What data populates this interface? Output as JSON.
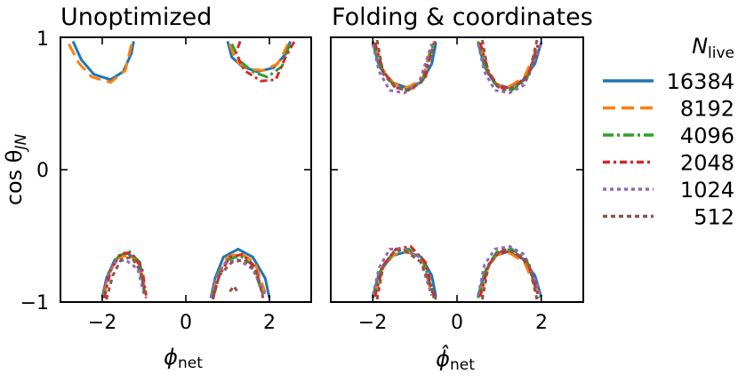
{
  "colors": {
    "16384": "#1f77b4",
    "8192": "#ff7f0e",
    "4096": "#2ca02c",
    "2048": "#d62728",
    "1024": "#9467bd",
    "512": "#8c564b"
  },
  "legend": {
    "title_main": "N",
    "title_sub": "live",
    "entries": [
      "16384",
      "8192",
      "4096",
      "2048",
      "1024",
      "512"
    ]
  },
  "chart_data": [
    {
      "type": "line",
      "title": "Unoptimized",
      "xlabel_main": "ϕ",
      "xlabel_sub": "net",
      "ylabel": "cos θ",
      "ylabel_sub": "JN",
      "xlim": [
        -3,
        3
      ],
      "ylim": [
        -1,
        1
      ],
      "xticks": [
        "−2",
        "0",
        "2"
      ],
      "yticks": [
        "1",
        "0",
        "−1"
      ],
      "series": [
        {
          "name": "16384",
          "curves": [
            {
              "x": [
                -2.7,
                -2.5,
                -2.2,
                -1.8,
                -1.5,
                -1.3,
                -1.25
              ],
              "y": [
                0.97,
                0.83,
                0.72,
                0.68,
                0.74,
                0.88,
                0.97
              ]
            },
            {
              "x": [
                1.0,
                1.1,
                1.35,
                1.7,
                2.1,
                2.4,
                2.5
              ],
              "y": [
                0.97,
                0.85,
                0.78,
                0.74,
                0.77,
                0.88,
                0.97
              ]
            },
            {
              "x": [
                -2.0,
                -1.9,
                -1.7,
                -1.4,
                -1.1,
                -1.0
              ],
              "y": [
                -0.97,
                -0.82,
                -0.68,
                -0.63,
                -0.7,
                -0.9
              ]
            },
            {
              "x": [
                0.6,
                0.7,
                0.9,
                1.25,
                1.6,
                1.9,
                2.0
              ],
              "y": [
                -0.97,
                -0.82,
                -0.66,
                -0.6,
                -0.66,
                -0.82,
                -0.97
              ]
            }
          ]
        },
        {
          "name": "8192",
          "curves": [
            {
              "x": [
                -2.8,
                -2.55,
                -2.25,
                -1.8,
                -1.45,
                -1.3
              ],
              "y": [
                0.95,
                0.8,
                0.7,
                0.66,
                0.75,
                0.95
              ]
            },
            {
              "x": [
                1.05,
                1.2,
                1.5,
                1.85,
                2.2,
                2.45
              ],
              "y": [
                0.95,
                0.82,
                0.76,
                0.75,
                0.8,
                0.95
              ]
            },
            {
              "x": [
                -1.95,
                -1.85,
                -1.65,
                -1.35,
                -1.1,
                -0.95
              ],
              "y": [
                -0.95,
                -0.8,
                -0.67,
                -0.64,
                -0.72,
                -0.93
              ]
            },
            {
              "x": [
                0.65,
                0.75,
                1.0,
                1.3,
                1.65,
                1.9
              ],
              "y": [
                -0.95,
                -0.8,
                -0.66,
                -0.63,
                -0.7,
                -0.93
              ]
            }
          ]
        },
        {
          "name": "4096",
          "curves": [
            {
              "x": [
                1.1,
                1.3,
                1.6,
                1.95,
                2.3,
                2.5
              ],
              "y": [
                0.95,
                0.82,
                0.74,
                0.7,
                0.78,
                0.96
              ]
            },
            {
              "x": [
                -2.0,
                -1.85,
                -1.6,
                -1.35,
                -1.1,
                -1.0
              ],
              "y": [
                -0.96,
                -0.78,
                -0.65,
                -0.62,
                -0.7,
                -0.92
              ]
            },
            {
              "x": [
                0.6,
                0.75,
                1.0,
                1.3,
                1.6,
                1.85
              ],
              "y": [
                -0.96,
                -0.8,
                -0.68,
                -0.65,
                -0.72,
                -0.95
              ]
            }
          ]
        },
        {
          "name": "2048",
          "curves": [
            {
              "x": [
                1.3,
                1.2,
                1.4,
                1.8,
                2.15,
                2.4,
                2.6
              ],
              "y": [
                0.97,
                0.88,
                0.75,
                0.67,
                0.68,
                0.86,
                0.97
              ]
            },
            {
              "x": [
                -1.95,
                -1.8,
                -1.55,
                -1.3,
                -1.05,
                -0.95
              ],
              "y": [
                -0.97,
                -0.76,
                -0.63,
                -0.63,
                -0.74,
                -0.95
              ]
            },
            {
              "x": [
                0.65,
                0.8,
                1.05,
                1.35,
                1.65,
                1.85
              ],
              "y": [
                -0.97,
                -0.8,
                -0.66,
                -0.64,
                -0.73,
                -0.94
              ]
            }
          ]
        },
        {
          "name": "1024",
          "curves": [
            {
              "x": [
                -2.0,
                -1.9,
                -1.7,
                -1.45,
                -1.15,
                -1.0
              ],
              "y": [
                -0.96,
                -0.82,
                -0.7,
                -0.68,
                -0.75,
                -0.94
              ]
            },
            {
              "x": [
                0.6,
                0.7,
                0.95,
                1.25,
                1.6,
                1.9
              ],
              "y": [
                -0.96,
                -0.82,
                -0.7,
                -0.68,
                -0.75,
                -0.95
              ]
            }
          ]
        },
        {
          "name": "512",
          "curves": [
            {
              "x": [
                -1.9,
                -1.75,
                -1.55,
                -1.3,
                -1.1,
                -0.95
              ],
              "y": [
                -0.98,
                -0.8,
                -0.68,
                -0.66,
                -0.76,
                -0.97
              ]
            },
            {
              "x": [
                0.65,
                0.8,
                1.1,
                1.4,
                1.7,
                1.85
              ],
              "y": [
                -0.98,
                -0.8,
                -0.7,
                -0.68,
                -0.78,
                -0.97
              ]
            },
            {
              "x": [
                1.05,
                1.15,
                1.25
              ],
              "y": [
                -0.92,
                -0.88,
                -0.93
              ]
            }
          ]
        }
      ]
    },
    {
      "type": "line",
      "title": "Folding & coordinates",
      "xlabel_main": "ϕ̂",
      "xlabel_sub": "net",
      "xlim": [
        -3,
        3
      ],
      "ylim": [
        -1,
        1
      ],
      "xticks": [
        "−2",
        "0",
        "2"
      ],
      "series": [
        {
          "name": "16384",
          "curves": [
            {
              "x": [
                -2.0,
                -1.85,
                -1.55,
                -1.2,
                -0.85,
                -0.6,
                -0.5
              ],
              "y": [
                0.96,
                0.78,
                0.66,
                0.62,
                0.66,
                0.8,
                0.96
              ]
            },
            {
              "x": [
                0.5,
                0.65,
                0.9,
                1.2,
                1.55,
                1.85,
                2.0
              ],
              "y": [
                0.96,
                0.78,
                0.65,
                0.62,
                0.67,
                0.8,
                0.96
              ]
            },
            {
              "x": [
                -2.0,
                -1.85,
                -1.55,
                -1.2,
                -0.85,
                -0.6,
                -0.5
              ],
              "y": [
                -0.96,
                -0.78,
                -0.65,
                -0.62,
                -0.66,
                -0.8,
                -0.96
              ]
            },
            {
              "x": [
                0.5,
                0.65,
                0.9,
                1.2,
                1.55,
                1.85,
                2.0
              ],
              "y": [
                -0.96,
                -0.78,
                -0.65,
                -0.62,
                -0.67,
                -0.8,
                -0.96
              ]
            }
          ]
        },
        {
          "name": "8192",
          "curves": [
            {
              "x": [
                -1.95,
                -1.8,
                -1.5,
                -1.15,
                -0.8,
                -0.6
              ],
              "y": [
                0.95,
                0.77,
                0.65,
                0.62,
                0.7,
                0.95
              ]
            },
            {
              "x": [
                0.55,
                0.7,
                0.95,
                1.25,
                1.6,
                1.95
              ],
              "y": [
                0.95,
                0.76,
                0.64,
                0.63,
                0.7,
                0.95
              ]
            },
            {
              "x": [
                -1.95,
                -1.8,
                -1.5,
                -1.15,
                -0.8,
                -0.6
              ],
              "y": [
                -0.95,
                -0.76,
                -0.64,
                -0.62,
                -0.7,
                -0.95
              ]
            },
            {
              "x": [
                0.55,
                0.7,
                0.95,
                1.25,
                1.6,
                1.95
              ],
              "y": [
                -0.95,
                -0.76,
                -0.64,
                -0.63,
                -0.7,
                -0.95
              ]
            }
          ]
        },
        {
          "name": "4096",
          "curves": [
            {
              "x": [
                -2.0,
                -1.8,
                -1.5,
                -1.15,
                -0.8,
                -0.55
              ],
              "y": [
                0.97,
                0.77,
                0.63,
                0.6,
                0.68,
                0.97
              ]
            },
            {
              "x": [
                0.5,
                0.7,
                0.95,
                1.3,
                1.65,
                1.95
              ],
              "y": [
                0.97,
                0.76,
                0.63,
                0.6,
                0.68,
                0.97
              ]
            },
            {
              "x": [
                -2.0,
                -1.8,
                -1.5,
                -1.15,
                -0.8,
                -0.55
              ],
              "y": [
                -0.97,
                -0.75,
                -0.62,
                -0.6,
                -0.68,
                -0.97
              ]
            },
            {
              "x": [
                0.5,
                0.7,
                0.95,
                1.3,
                1.65,
                1.95
              ],
              "y": [
                -0.97,
                -0.74,
                -0.62,
                -0.6,
                -0.68,
                -0.97
              ]
            }
          ]
        },
        {
          "name": "2048",
          "curves": [
            {
              "x": [
                -1.95,
                -1.75,
                -1.45,
                -1.1,
                -0.75,
                -0.55
              ],
              "y": [
                0.96,
                0.74,
                0.62,
                0.6,
                0.7,
                0.96
              ]
            },
            {
              "x": [
                0.55,
                0.75,
                1.0,
                1.35,
                1.7,
                1.95
              ],
              "y": [
                0.96,
                0.74,
                0.62,
                0.62,
                0.72,
                0.96
              ]
            },
            {
              "x": [
                -1.95,
                -1.75,
                -1.45,
                -1.1,
                -0.75,
                -0.55
              ],
              "y": [
                -0.96,
                -0.72,
                -0.6,
                -0.58,
                -0.7,
                -0.96
              ]
            },
            {
              "x": [
                0.55,
                0.75,
                1.0,
                1.35,
                1.7,
                1.95
              ],
              "y": [
                -0.96,
                -0.72,
                -0.62,
                -0.62,
                -0.72,
                -0.96
              ]
            }
          ]
        },
        {
          "name": "1024",
          "curves": [
            {
              "x": [
                -2.0,
                -1.85,
                -1.6,
                -1.25,
                -0.9,
                -0.6
              ],
              "y": [
                0.95,
                0.74,
                0.6,
                0.58,
                0.66,
                0.95
              ]
            },
            {
              "x": [
                0.5,
                0.65,
                0.9,
                1.25,
                1.6,
                2.0
              ],
              "y": [
                0.95,
                0.74,
                0.6,
                0.58,
                0.64,
                0.95
              ]
            },
            {
              "x": [
                -2.0,
                -1.85,
                -1.6,
                -1.25,
                -0.9,
                -0.6
              ],
              "y": [
                -0.95,
                -0.74,
                -0.6,
                -0.6,
                -0.66,
                -0.95
              ]
            },
            {
              "x": [
                0.5,
                0.65,
                0.9,
                1.25,
                1.6,
                2.0
              ],
              "y": [
                -0.95,
                -0.72,
                -0.6,
                -0.58,
                -0.64,
                -0.95
              ]
            }
          ]
        },
        {
          "name": "512",
          "curves": [
            {
              "x": [
                -1.9,
                -1.75,
                -1.45,
                -1.2,
                -0.85,
                -0.5
              ],
              "y": [
                0.98,
                0.72,
                0.62,
                0.6,
                0.66,
                0.98
              ]
            },
            {
              "x": [
                0.6,
                0.75,
                1.05,
                1.35,
                1.7,
                1.9
              ],
              "y": [
                0.98,
                0.72,
                0.6,
                0.62,
                0.7,
                0.98
              ]
            },
            {
              "x": [
                -1.9,
                -1.75,
                -1.45,
                -1.2,
                -0.85,
                -0.5
              ],
              "y": [
                -0.98,
                -0.72,
                -0.6,
                -0.62,
                -0.7,
                -0.98
              ]
            },
            {
              "x": [
                0.6,
                0.75,
                1.05,
                1.35,
                1.7,
                1.9
              ],
              "y": [
                -0.98,
                -0.72,
                -0.6,
                -0.62,
                -0.7,
                -0.98
              ]
            }
          ]
        }
      ]
    }
  ]
}
